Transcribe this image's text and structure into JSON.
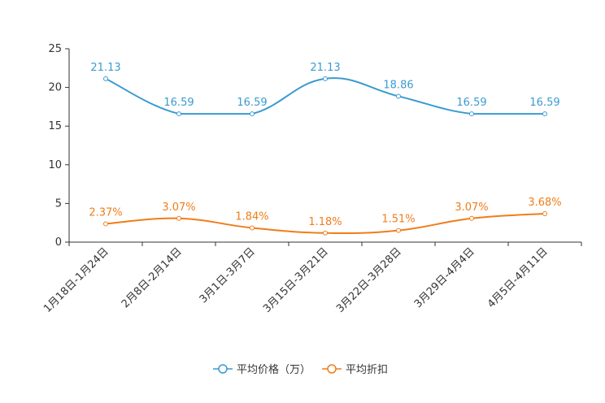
{
  "chart_data": {
    "type": "line",
    "title": "",
    "xlabel": "",
    "ylabel": "",
    "ylim": [
      0,
      25
    ],
    "yticks": [
      0,
      5,
      10,
      15,
      20,
      25
    ],
    "grid": false,
    "legend_position": "bottom-center",
    "categories": [
      "1月18日-1月24日",
      "2月8日-2月14日",
      "3月1日-3月7日",
      "3月15日-3月21日",
      "3月22日-3月28日",
      "3月29日-4月4日",
      "4月5日-4月11日"
    ],
    "series": [
      {
        "name": "平均价格（万）",
        "color": "#3a9bd0",
        "values": [
          21.13,
          16.59,
          16.59,
          21.13,
          18.86,
          16.59,
          16.59
        ],
        "labels": [
          "21.13",
          "16.59",
          "16.59",
          "21.13",
          "18.86",
          "16.59",
          "16.59"
        ]
      },
      {
        "name": "平均折扣",
        "color": "#f07d19",
        "values": [
          2.37,
          3.07,
          1.84,
          1.18,
          1.51,
          3.07,
          3.68
        ],
        "labels": [
          "2.37%",
          "3.07%",
          "1.84%",
          "1.18%",
          "1.51%",
          "3.07%",
          "3.68%"
        ]
      }
    ]
  }
}
